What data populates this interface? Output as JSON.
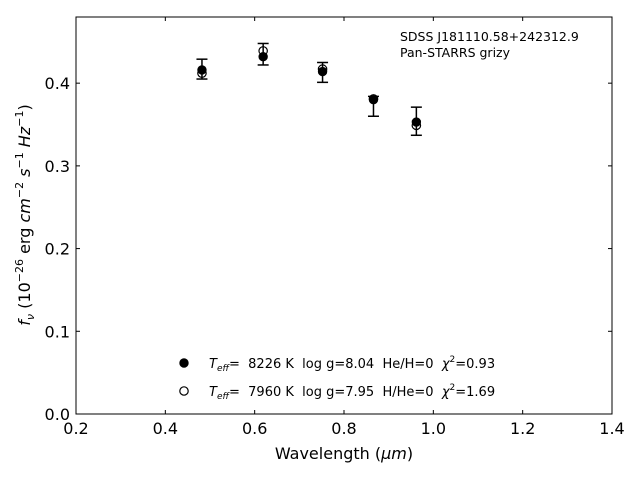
{
  "chart_data": {
    "type": "scatter",
    "title": "",
    "annotation": {
      "line1": "SDSS J181110.58+242312.9",
      "line2": "Pan-STARRS grizy"
    },
    "xlabel": {
      "main": "Wavelength (",
      "unit": "μm",
      "close": ")"
    },
    "ylabel": {
      "f": "f",
      "nu": "ν",
      "open": " (10",
      "exp1": "−26",
      "erg": " erg ",
      "cm": "cm",
      "exp2": "−2",
      "s": " s",
      "exp3": "−1",
      "hz": " Hz",
      "exp4": "−1",
      "close": ")"
    },
    "xlim": [
      0.2,
      1.4
    ],
    "ylim": [
      0.0,
      0.48
    ],
    "xticks": [
      "0.2",
      "0.4",
      "0.6",
      "0.8",
      "1.0",
      "1.2",
      "1.4"
    ],
    "yticks": [
      "0.0",
      "0.1",
      "0.2",
      "0.3",
      "0.4"
    ],
    "observed": {
      "x": [
        0.482,
        0.619,
        0.752,
        0.866,
        0.962
      ],
      "y": [
        0.417,
        0.435,
        0.413,
        0.372,
        0.354
      ],
      "yerr": [
        0.012,
        0.013,
        0.012,
        0.012,
        0.017
      ]
    },
    "series": [
      {
        "marker": "filled-circle",
        "x": [
          0.482,
          0.619,
          0.752,
          0.866,
          0.962
        ],
        "y": [
          0.416,
          0.432,
          0.414,
          0.38,
          0.353
        ],
        "label": {
          "t": "T",
          "eff": "eff",
          "rest": "=  8226 K  log g=8.04  He/H=0  ",
          "chi": "χ",
          "sq": "2",
          "val": "=0.93"
        }
      },
      {
        "marker": "open-circle",
        "x": [
          0.482,
          0.619,
          0.752,
          0.866,
          0.962
        ],
        "y": [
          0.412,
          0.439,
          0.417,
          0.381,
          0.349
        ],
        "label": {
          "t": "T",
          "eff": "eff",
          "rest": "=  7960 K  log g=7.95  H/He=0  ",
          "chi": "χ",
          "sq": "2",
          "val": "=1.69"
        }
      }
    ],
    "legend_position": "lower-center",
    "grid": false,
    "colors": {
      "marker": "#000000",
      "axes": "#000000",
      "background": "#ffffff"
    }
  }
}
